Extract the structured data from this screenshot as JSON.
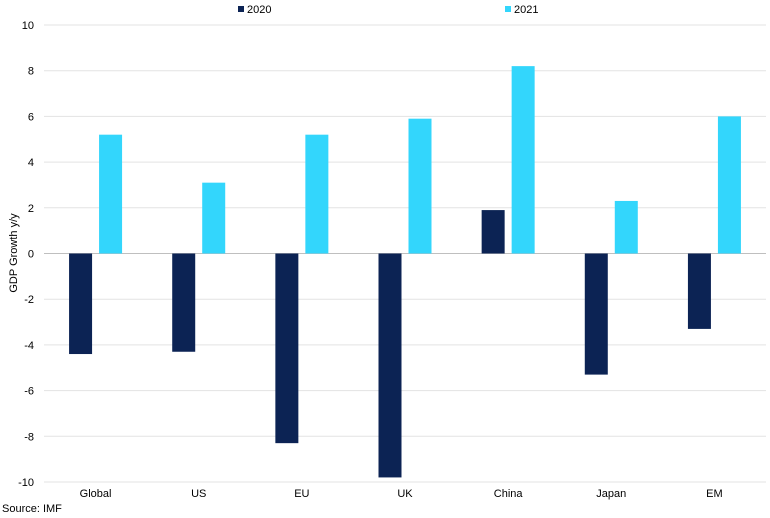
{
  "chart_data": {
    "type": "bar",
    "categories": [
      "Global",
      "US",
      "EU",
      "UK",
      "China",
      "Japan",
      "EM"
    ],
    "series": [
      {
        "name": "2020",
        "color": "#0c2354",
        "values": [
          -4.4,
          -4.3,
          -8.3,
          -9.8,
          1.9,
          -5.3,
          -3.3
        ]
      },
      {
        "name": "2021",
        "color": "#33d6fc",
        "values": [
          5.2,
          3.1,
          5.2,
          5.9,
          8.2,
          2.3,
          6.0
        ]
      }
    ],
    "ylabel": "GDP Growth y/y",
    "ylim": [
      -10,
      10
    ],
    "yticks": [
      10,
      8,
      6,
      4,
      2,
      0,
      -2,
      -4,
      -6,
      -8,
      -10
    ],
    "grid": true,
    "legend": "top"
  },
  "source": "Source: IMF"
}
